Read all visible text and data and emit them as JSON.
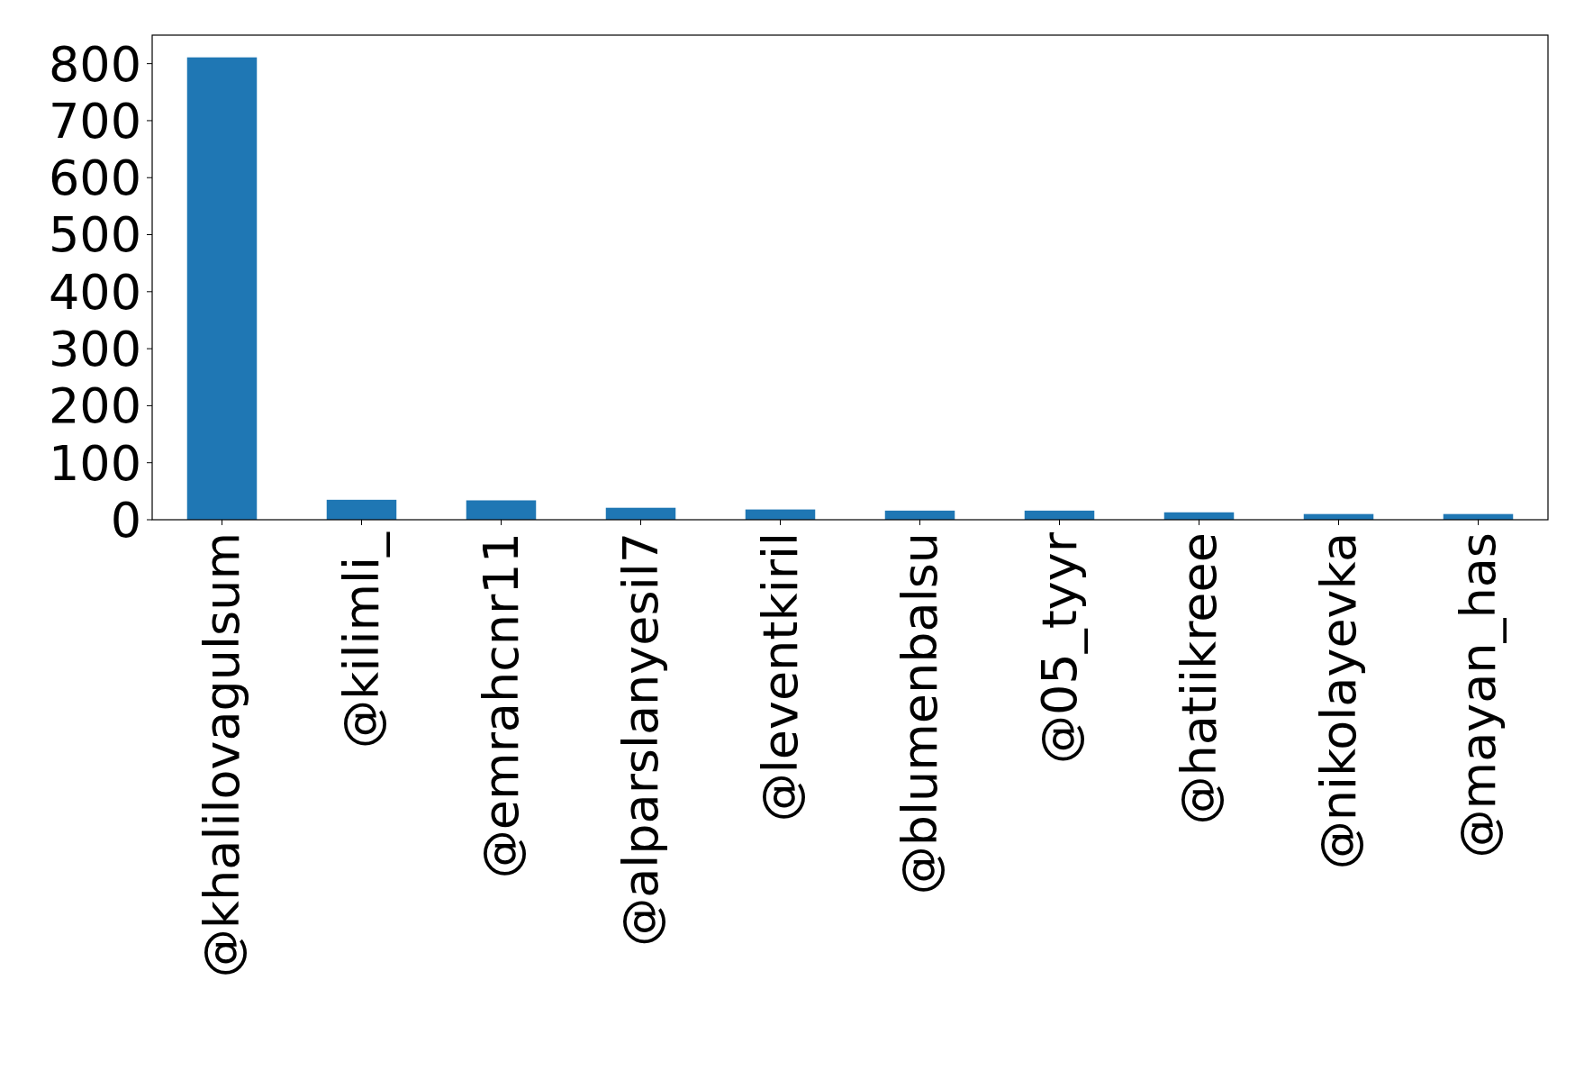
{
  "chart_data": {
    "type": "bar",
    "categories": [
      "@khalilovagulsum",
      "@kilimli_",
      "@emrahcnr11",
      "@alparslanyesil7",
      "@leventkiril",
      "@blumenbalsu",
      "@05_tyyr",
      "@hatiikreee",
      "@nikolayevka",
      "@mayan_has"
    ],
    "values": [
      811,
      35,
      34,
      21,
      18,
      16,
      16,
      13,
      10,
      10
    ],
    "color": "#1f77b4",
    "ylim": [
      0,
      850
    ],
    "yticks": [
      0,
      100,
      200,
      300,
      400,
      500,
      600,
      700,
      800
    ],
    "grid": false
  }
}
